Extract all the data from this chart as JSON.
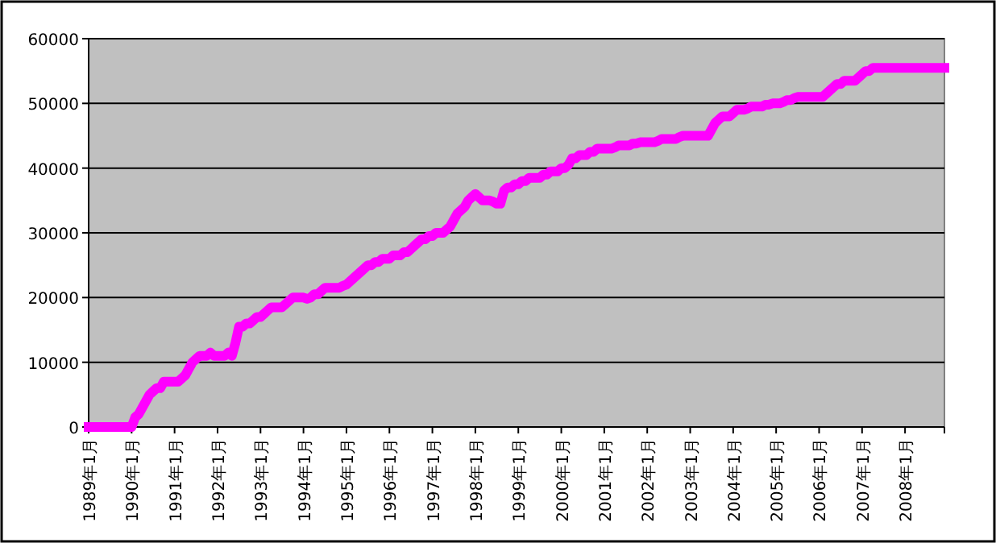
{
  "chart_data": {
    "type": "line",
    "categories": [
      "1989年1月",
      null,
      null,
      null,
      null,
      null,
      null,
      null,
      null,
      null,
      null,
      null,
      "1990年1月",
      null,
      null,
      null,
      null,
      null,
      null,
      null,
      null,
      null,
      null,
      null,
      "1991年1月",
      null,
      null,
      null,
      null,
      null,
      null,
      null,
      null,
      null,
      null,
      null,
      "1992年1月",
      null,
      null,
      null,
      null,
      null,
      null,
      null,
      null,
      null,
      null,
      null,
      "1993年1月",
      null,
      null,
      null,
      null,
      null,
      null,
      null,
      null,
      null,
      null,
      null,
      "1994年1月",
      null,
      null,
      null,
      null,
      null,
      null,
      null,
      null,
      null,
      null,
      null,
      "1995年1月",
      null,
      null,
      null,
      null,
      null,
      null,
      null,
      null,
      null,
      null,
      null,
      "1996年1月",
      null,
      null,
      null,
      null,
      null,
      null,
      null,
      null,
      null,
      null,
      null,
      "1997年1月",
      null,
      null,
      null,
      null,
      null,
      null,
      null,
      null,
      null,
      null,
      null,
      "1998年1月",
      null,
      null,
      null,
      null,
      null,
      null,
      null,
      null,
      null,
      null,
      null,
      "1999年1月",
      null,
      null,
      null,
      null,
      null,
      null,
      null,
      null,
      null,
      null,
      null,
      "2000年1月",
      null,
      null,
      null,
      null,
      null,
      null,
      null,
      null,
      null,
      null,
      null,
      "2001年1月",
      null,
      null,
      null,
      null,
      null,
      null,
      null,
      null,
      null,
      null,
      null,
      "2002年1月",
      null,
      null,
      null,
      null,
      null,
      null,
      null,
      null,
      null,
      null,
      null,
      "2003年1月",
      null,
      null,
      null,
      null,
      null,
      null,
      null,
      null,
      null,
      null,
      null,
      "2004年1月",
      null,
      null,
      null,
      null,
      null,
      null,
      null,
      null,
      null,
      null,
      null,
      "2005年1月",
      null,
      null,
      null,
      null,
      null,
      null,
      null,
      null,
      null,
      null,
      null,
      "2006年1月",
      null,
      null,
      null,
      null,
      null,
      null,
      null,
      null,
      null,
      null,
      null,
      "2007年1月",
      null,
      null,
      null,
      null,
      null,
      null,
      null,
      null,
      null,
      null,
      null,
      "2008年1月",
      null,
      null,
      null,
      null,
      null,
      null,
      null,
      null,
      null,
      null,
      null
    ],
    "series": [
      {
        "color": "#ff00ff",
        "values": [
          0,
          0,
          0,
          0,
          0,
          0,
          0,
          0,
          0,
          0,
          0,
          0,
          0,
          1500,
          2000,
          3000,
          4000,
          5000,
          5500,
          6000,
          6000,
          7000,
          7000,
          7000,
          7000,
          7000,
          7500,
          8000,
          9000,
          10000,
          10500,
          11000,
          11000,
          11000,
          11500,
          11000,
          11000,
          11000,
          11000,
          11500,
          11000,
          13000,
          15500,
          15500,
          16000,
          16000,
          16500,
          17000,
          17000,
          17500,
          18000,
          18500,
          18500,
          18500,
          18500,
          19000,
          19500,
          20000,
          20000,
          20000,
          20000,
          19800,
          20000,
          20500,
          20500,
          21000,
          21500,
          21500,
          21500,
          21500,
          21500,
          21800,
          22000,
          22500,
          23000,
          23500,
          24000,
          24500,
          25000,
          25000,
          25500,
          25500,
          26000,
          26000,
          26000,
          26500,
          26500,
          26500,
          27000,
          27000,
          27500,
          28000,
          28500,
          29000,
          29000,
          29500,
          29500,
          30000,
          30000,
          30000,
          30500,
          31000,
          32000,
          33000,
          33500,
          34000,
          35000,
          35500,
          36000,
          35500,
          35000,
          35000,
          35000,
          34800,
          34500,
          34500,
          36500,
          37000,
          37000,
          37500,
          37500,
          38000,
          38000,
          38500,
          38500,
          38500,
          38500,
          39000,
          39000,
          39500,
          39500,
          39500,
          40000,
          40000,
          40500,
          41500,
          41500,
          42000,
          42000,
          42000,
          42500,
          42500,
          43000,
          43000,
          43000,
          43000,
          43000,
          43200,
          43500,
          43500,
          43500,
          43500,
          43800,
          43800,
          44000,
          44000,
          44000,
          44000,
          44000,
          44200,
          44500,
          44500,
          44500,
          44500,
          44500,
          44800,
          45000,
          45000,
          45000,
          45000,
          45000,
          45000,
          45000,
          45000,
          46000,
          47000,
          47500,
          48000,
          48000,
          48000,
          48500,
          49000,
          49000,
          49000,
          49200,
          49500,
          49500,
          49500,
          49500,
          49800,
          49800,
          50000,
          50000,
          50000,
          50200,
          50500,
          50500,
          50800,
          51000,
          51000,
          51000,
          51000,
          51000,
          51000,
          51000,
          51000,
          51500,
          52000,
          52500,
          53000,
          53000,
          53500,
          53500,
          53500,
          53500,
          54000,
          54500,
          55000,
          55000,
          55500,
          55500,
          55500,
          55500,
          55500,
          55500,
          55500,
          55500,
          55500,
          55500,
          55500,
          55500,
          55500,
          55500,
          55500,
          55500,
          55500,
          55500,
          55500,
          55500,
          55500
        ]
      }
    ],
    "ylim": [
      0,
      60000
    ],
    "yticks": [
      0,
      10000,
      20000,
      30000,
      40000,
      50000,
      60000
    ],
    "grid": "y",
    "line_style": "solid"
  }
}
